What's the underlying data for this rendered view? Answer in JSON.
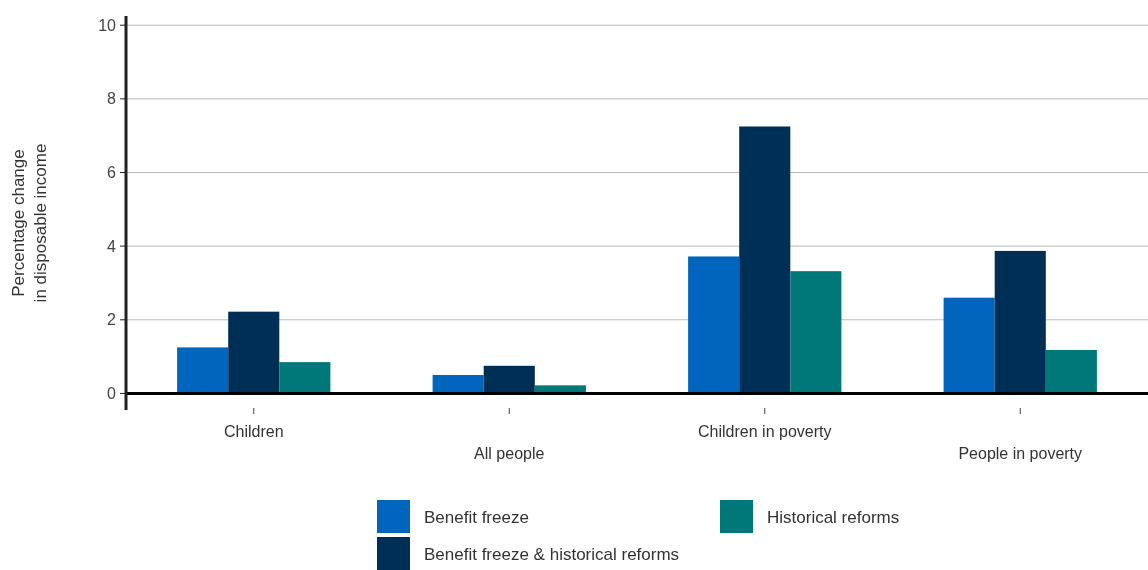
{
  "chart_data": {
    "type": "bar",
    "ylabel": "Percentage change\nin disposable income",
    "categories": [
      "Children",
      "All people",
      "Children in poverty",
      "People in poverty"
    ],
    "series": [
      {
        "name": "Benefit freeze",
        "color": "#0065bd",
        "values": [
          1.25,
          0.5,
          3.72,
          2.6
        ]
      },
      {
        "name": "Benefit freeze & historical reforms",
        "color": "#002f56",
        "values": [
          2.22,
          0.75,
          7.25,
          3.87
        ]
      },
      {
        "name": "Historical reforms",
        "color": "#00787a",
        "values": [
          0.85,
          0.22,
          3.32,
          1.18
        ]
      }
    ],
    "ylim": [
      -0.45,
      10.25
    ],
    "yticks": [
      0,
      2,
      4,
      6,
      8,
      10
    ],
    "grid": "y",
    "legend": "bottom"
  }
}
